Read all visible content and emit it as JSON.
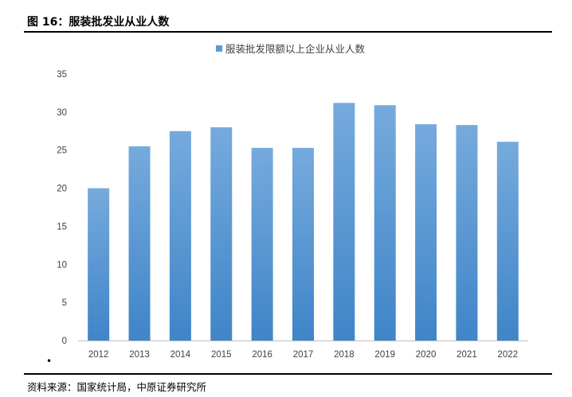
{
  "figure_title": "图 16：服装批发业从业人数",
  "source": "资料来源：国家统计局，中原证券研究所",
  "bullet": "•",
  "colors": {
    "bar_top": "#76aadd",
    "bar_bottom": "#3f85c8",
    "axis": "#bfbfbf"
  },
  "chart_data": {
    "type": "bar",
    "categories": [
      "2012",
      "2013",
      "2014",
      "2015",
      "2016",
      "2017",
      "2018",
      "2019",
      "2020",
      "2021",
      "2022"
    ],
    "series": [
      {
        "name": "服装批发限额以上企业从业人数",
        "values": [
          20.0,
          25.5,
          27.5,
          28.0,
          25.3,
          25.3,
          31.2,
          30.9,
          28.4,
          28.3,
          26.1
        ]
      }
    ],
    "ylim": [
      0,
      35
    ],
    "yticks": [
      0,
      5,
      10,
      15,
      20,
      25,
      30,
      35
    ],
    "legend": "top-center",
    "grid": false
  }
}
